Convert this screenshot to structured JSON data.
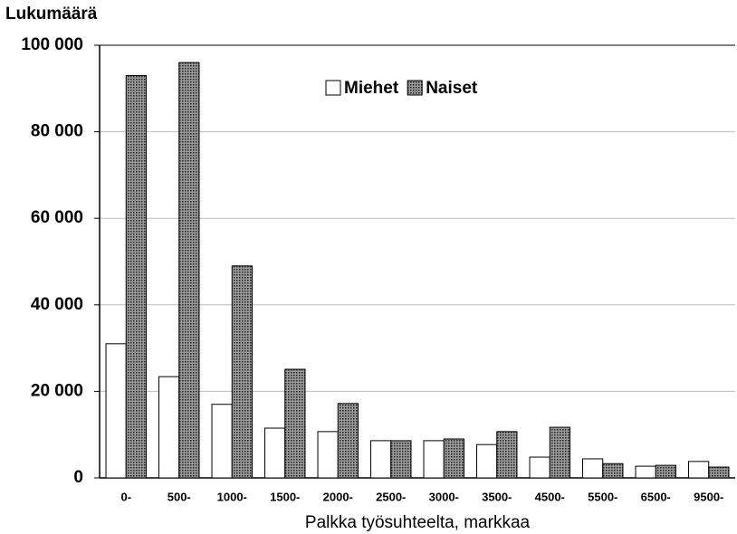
{
  "chart_data": {
    "type": "bar",
    "title": "Lukumäärä",
    "x_label": "Palkka työsuhteelta, markkaa",
    "categories": [
      "0-",
      "500-",
      "1000-",
      "1500-",
      "2000-",
      "2500-",
      "3000-",
      "3500-",
      "4500-",
      "5500-",
      "6500-",
      "9500-"
    ],
    "series": [
      {
        "name": "Miehet",
        "color": "#ffffff",
        "values": [
          31000,
          23400,
          17000,
          11500,
          10700,
          8600,
          8600,
          7700,
          4800,
          4400,
          2700,
          3800
        ]
      },
      {
        "name": "Naiset",
        "color": "#9a9a9a",
        "values": [
          93000,
          96000,
          49000,
          25100,
          17200,
          8600,
          9000,
          10700,
          11700,
          3300,
          2900,
          2500
        ]
      }
    ],
    "ylim": [
      0,
      100000
    ],
    "yticks": [
      0,
      {
        "value": 20000,
        "label": "20 000"
      },
      {
        "value": 40000,
        "label": "40 000"
      },
      {
        "value": 60000,
        "label": "60 000"
      },
      {
        "value": 80000,
        "label": "80 000"
      },
      {
        "value": 100000,
        "label": "100 000"
      }
    ],
    "grid": true,
    "legend": "top"
  }
}
